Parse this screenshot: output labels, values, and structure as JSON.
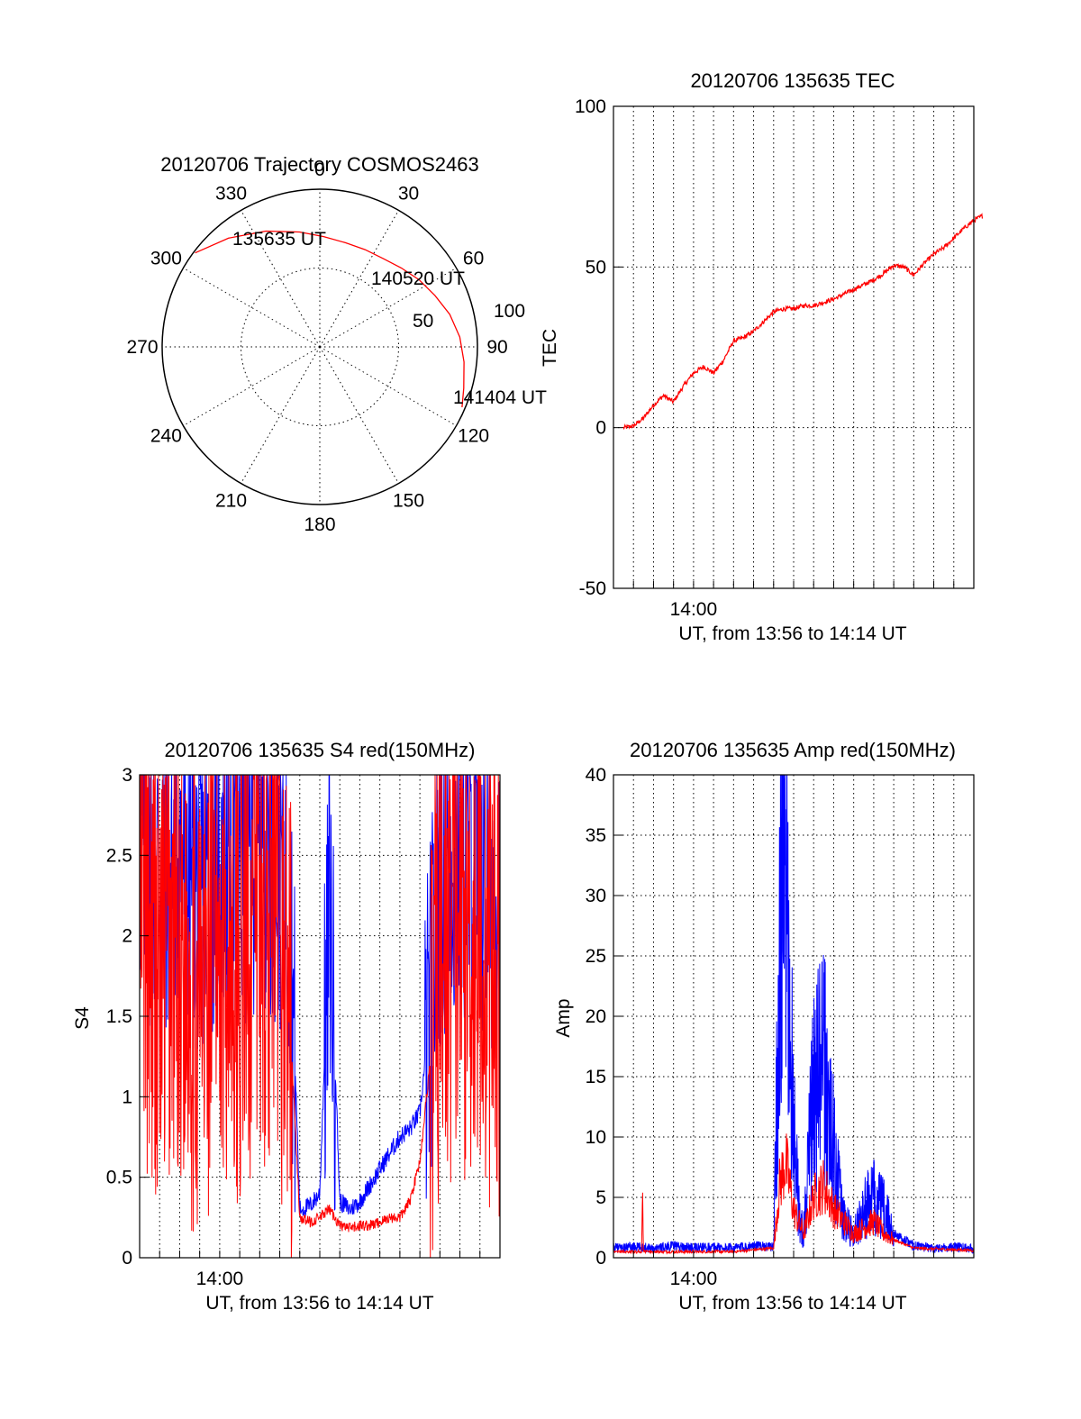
{
  "colors": {
    "red": "#ff0000",
    "blue": "#0000ff",
    "axis": "#000000"
  },
  "chart_data": [
    {
      "type": "polar",
      "title": "20120706 Trajectory COSMOS2463",
      "azimuth_labels": [
        "0",
        "30",
        "60",
        "90",
        "120",
        "150",
        "180",
        "210",
        "240",
        "270",
        "300",
        "330"
      ],
      "radius_labels": [
        "50",
        "100"
      ],
      "grid": true,
      "series": [
        {
          "color": "red",
          "azimuth_deg": [
            307,
            320,
            335,
            350,
            2,
            14,
            25,
            36,
            46,
            56,
            66,
            76,
            86,
            96,
            106,
            113
          ],
          "zenith_deg": [
            99,
            90,
            81,
            74,
            70,
            68,
            68,
            69,
            72,
            76,
            80,
            85,
            89,
            92,
            95,
            98
          ]
        }
      ],
      "annotations": [
        {
          "text": "135635 UT",
          "azimuth_deg": 307,
          "zenith_deg": 99
        },
        {
          "text": "140520 UT",
          "azimuth_deg": 46,
          "zenith_deg": 72
        },
        {
          "text": "141404 UT",
          "azimuth_deg": 113,
          "zenith_deg": 98
        }
      ]
    },
    {
      "type": "line",
      "title": "20120706 135635 TEC",
      "xlabel": "UT, from 13:56 to 14:14 UT",
      "ylabel": "TEC",
      "x_tick_labels": [
        "14:00"
      ],
      "y_tick_labels": [
        "-50",
        "0",
        "50",
        "100"
      ],
      "ylim": [
        -50,
        100
      ],
      "grid": true,
      "series": [
        {
          "color": "red",
          "x": [
            0.0,
            0.5,
            1.0,
            1.5,
            2.0,
            2.5,
            3.0,
            3.5,
            4.0,
            4.5,
            5.0,
            5.5,
            6.0,
            6.5,
            7.0,
            7.5,
            8.0,
            8.5,
            9.0,
            9.5,
            10.0,
            10.5,
            11.0,
            11.5,
            12.0,
            12.5,
            13.0,
            13.5,
            14.0,
            14.5,
            15.0,
            15.5,
            16.0,
            16.5,
            17.0,
            17.5,
            17.95
          ],
          "y": [
            0,
            0.5,
            3,
            7,
            10,
            8,
            13,
            17,
            19,
            17,
            21,
            27,
            28,
            30,
            33,
            36,
            37,
            37,
            38,
            38,
            39,
            40,
            41.5,
            43,
            44.5,
            46,
            48,
            50.5,
            50,
            47.5,
            51,
            54,
            56,
            59,
            62,
            64.5,
            66
          ]
        }
      ]
    },
    {
      "type": "line",
      "title": "20120706 135635 S4 red(150MHz)",
      "xlabel": "UT, from 13:56 to 14:14 UT",
      "ylabel": "S4",
      "x_tick_labels": [
        "14:00"
      ],
      "y_tick_labels": [
        "0",
        "0.5",
        "1",
        "1.5",
        "2",
        "2.5",
        "3"
      ],
      "ylim": [
        0,
        3
      ],
      "grid": true,
      "series": [
        {
          "color": "blue",
          "x": [
            0.0,
            1.0,
            2.0,
            3.0,
            4.0,
            5.0,
            6.0,
            7.0,
            7.5,
            8.0,
            8.5,
            9.0,
            9.5,
            10.0,
            10.5,
            11.0,
            11.5,
            12.0,
            12.5,
            13.0,
            13.5,
            14.0,
            14.5,
            15.0,
            16.0,
            17.0,
            18.0
          ],
          "y": [
            2.6,
            2.4,
            2.5,
            2.3,
            2.6,
            2.4,
            2.7,
            2.5,
            2.2,
            0.3,
            0.32,
            0.4,
            2.2,
            0.35,
            0.3,
            0.35,
            0.45,
            0.55,
            0.65,
            0.75,
            0.8,
            0.9,
            1.5,
            2.4,
            2.5,
            2.4,
            2.3
          ]
        },
        {
          "color": "red",
          "x": [
            0.0,
            1.0,
            2.0,
            3.0,
            4.0,
            5.0,
            6.0,
            7.0,
            7.5,
            8.0,
            8.5,
            9.0,
            9.5,
            10.0,
            10.5,
            11.0,
            11.5,
            12.0,
            12.5,
            13.0,
            13.5,
            14.0,
            14.5,
            15.0,
            16.0,
            17.0,
            18.0
          ],
          "y": [
            2.2,
            1.8,
            2.0,
            1.6,
            2.1,
            1.9,
            2.2,
            2.0,
            1.5,
            0.25,
            0.22,
            0.25,
            0.3,
            0.2,
            0.18,
            0.2,
            0.2,
            0.22,
            0.25,
            0.25,
            0.35,
            0.6,
            1.2,
            1.9,
            2.1,
            2.0,
            1.8
          ]
        }
      ]
    },
    {
      "type": "line",
      "title": "20120706 135635 Amp red(150MHz)",
      "xlabel": "UT, from 13:56 to 14:14 UT",
      "ylabel": "Amp",
      "x_tick_labels": [
        "14:00"
      ],
      "y_tick_labels": [
        "0",
        "5",
        "10",
        "15",
        "20",
        "25",
        "30",
        "35",
        "40"
      ],
      "ylim": [
        0,
        40
      ],
      "grid": true,
      "series": [
        {
          "color": "blue",
          "x": [
            0.0,
            1.0,
            2.0,
            3.0,
            4.0,
            5.0,
            6.0,
            7.0,
            8.0,
            8.3,
            8.5,
            8.8,
            9.0,
            9.3,
            9.5,
            10.0,
            10.5,
            11.0,
            11.5,
            12.0,
            12.5,
            13.0,
            13.5,
            14.0,
            15.0,
            16.0,
            17.0,
            18.0
          ],
          "y": [
            0.8,
            0.9,
            0.8,
            1.0,
            0.8,
            0.9,
            0.8,
            1.0,
            0.9,
            25,
            35,
            20,
            12,
            3,
            2,
            14,
            16,
            9,
            3,
            2,
            4,
            5,
            4,
            2,
            1.0,
            0.8,
            0.9,
            0.8
          ]
        },
        {
          "color": "red",
          "x": [
            0.0,
            1.4,
            1.45,
            1.5,
            3.0,
            6.0,
            8.0,
            8.3,
            8.6,
            9.0,
            9.5,
            10.0,
            10.5,
            11.0,
            12.0,
            13.0,
            13.5,
            14.0,
            15.0,
            18.0
          ],
          "y": [
            0.5,
            0.5,
            8.3,
            0.5,
            0.5,
            0.5,
            0.8,
            6,
            8,
            4,
            2,
            5,
            6,
            4,
            2,
            3,
            2,
            1.5,
            0.8,
            0.6
          ]
        }
      ]
    }
  ]
}
